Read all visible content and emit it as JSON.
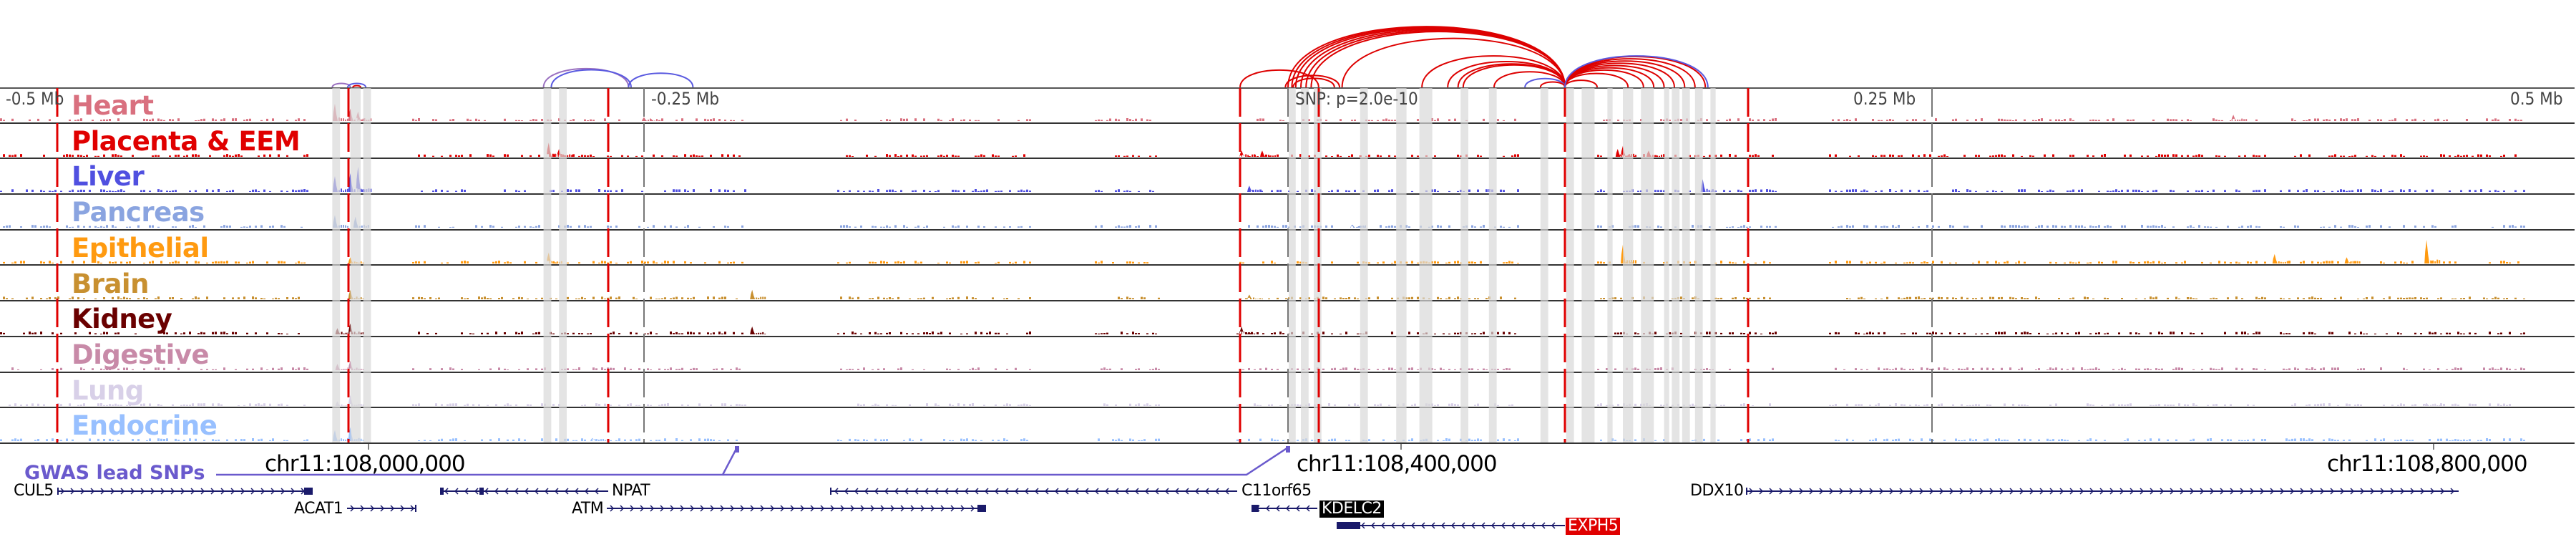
{
  "tracks": [
    {
      "label": "Heart",
      "color": "#d9707f",
      "peaks": [
        [
          -370,
          0.55
        ],
        [
          -364,
          0.4
        ],
        [
          -361,
          0.3
        ],
        [
          -250,
          0.12
        ],
        [
          367,
          0.2
        ]
      ]
    },
    {
      "label": "Placenta & EEM",
      "color": "#e00000",
      "peaks": [
        [
          -287,
          0.45
        ],
        [
          -283,
          0.25
        ],
        [
          -18,
          0.2
        ],
        [
          -10,
          0.2
        ],
        [
          130,
          0.35
        ],
        [
          128,
          0.25
        ],
        [
          140,
          0.2
        ]
      ]
    },
    {
      "label": "Liver",
      "color": "#5050e0",
      "peaks": [
        [
          -370,
          0.5
        ],
        [
          -364,
          0.6
        ],
        [
          -361,
          0.8
        ],
        [
          -15,
          0.2
        ],
        [
          161,
          0.4
        ]
      ]
    },
    {
      "label": "Pancreas",
      "color": "#8aa4e0",
      "peaks": [
        [
          -370,
          0.4
        ],
        [
          -362,
          0.35
        ],
        [
          25,
          0.1
        ]
      ]
    },
    {
      "label": "Epithelial",
      "color": "#ff9a10",
      "peaks": [
        [
          -287,
          0.35
        ],
        [
          -364,
          0.2
        ],
        [
          130,
          0.6
        ],
        [
          383,
          0.3
        ],
        [
          411,
          0.2
        ],
        [
          442,
          0.75
        ]
      ]
    },
    {
      "label": "Brain",
      "color": "#c89030",
      "peaks": [
        [
          -208,
          0.3
        ],
        [
          -364,
          0.3
        ],
        [
          -15,
          0.15
        ]
      ]
    },
    {
      "label": "Kidney",
      "color": "#6a0000",
      "peaks": [
        [
          -208,
          0.25
        ],
        [
          -364,
          0.35
        ],
        [
          -369,
          0.2
        ],
        [
          -18,
          0.25
        ]
      ]
    },
    {
      "label": "Digestive",
      "color": "#c88aa8",
      "peaks": [
        [
          -364,
          0.3
        ],
        [
          -369,
          0.2
        ]
      ]
    },
    {
      "label": "Lung",
      "color": "#d8d0e8",
      "peaks": [
        [
          -364,
          0.35
        ],
        [
          -369,
          0.15
        ],
        [
          442,
          0.1
        ]
      ]
    },
    {
      "label": "Endocrine",
      "color": "#98c0ff",
      "peaks": [
        [
          -364,
          0.45
        ],
        [
          -370,
          0.35
        ],
        [
          -270,
          0.1
        ]
      ]
    }
  ],
  "axis_labels": {
    "minus_half": "-0.5 Mb",
    "minus_quarter": "-0.25 Mb",
    "snp": "SNP: p=2.0e-10",
    "plus_quarter": "0.25 Mb",
    "plus_half": "0.5 Mb"
  },
  "coordinates": {
    "left": "chr11:108,000,000",
    "center": "chr11:108,400,000",
    "right": "chr11:108,800,000"
  },
  "gwas": {
    "label": "GWAS lead SNPs",
    "color": "#6a5acd"
  },
  "genes": {
    "cul5": "CUL5",
    "acat1": "ACAT1",
    "npat": "NPAT",
    "atm": "ATM",
    "c11orf65": "C11orf65",
    "kdelc2": "KDELC2",
    "exph5": "EXPH5",
    "ddx10": "DDX10"
  },
  "highlight_colors": {
    "kdelc2": "#000000",
    "exph5": "#e00000"
  },
  "loops_kb": [
    [
      -18.6,
      11.9,
      "r"
    ],
    [
      0,
      107.5,
      "r"
    ],
    [
      1.5,
      107.5,
      "r"
    ],
    [
      3,
      107.5,
      "r"
    ],
    [
      5,
      107.5,
      "r"
    ],
    [
      7,
      107.5,
      "r"
    ],
    [
      9,
      107.5,
      "r"
    ],
    [
      21,
      107.5,
      "r"
    ],
    [
      -1,
      20,
      "r"
    ],
    [
      2,
      18,
      "r"
    ],
    [
      52,
      107.5,
      "r"
    ],
    [
      62,
      107.5,
      "r"
    ],
    [
      66,
      107.5,
      "r"
    ],
    [
      68,
      107.5,
      "r"
    ],
    [
      80,
      107.5,
      "r"
    ],
    [
      92,
      107.5,
      "b"
    ],
    [
      98,
      107.5,
      "r"
    ],
    [
      107.5,
      120,
      "r"
    ],
    [
      107.5,
      132,
      "r"
    ],
    [
      107.5,
      138,
      "r"
    ],
    [
      107.5,
      142,
      "r"
    ],
    [
      107.5,
      146,
      "r"
    ],
    [
      107.5,
      150,
      "r"
    ],
    [
      107.5,
      154,
      "r"
    ],
    [
      107.5,
      158,
      "r"
    ],
    [
      107.5,
      162,
      "r"
    ],
    [
      107.5,
      163,
      "b"
    ],
    [
      -371,
      -364,
      "p"
    ],
    [
      -365,
      -358,
      "b"
    ],
    [
      -289,
      -256,
      "p"
    ],
    [
      -286,
      -255,
      "b"
    ],
    [
      -256,
      -231,
      "b"
    ],
    [
      -363,
      -360,
      "r"
    ]
  ]
}
